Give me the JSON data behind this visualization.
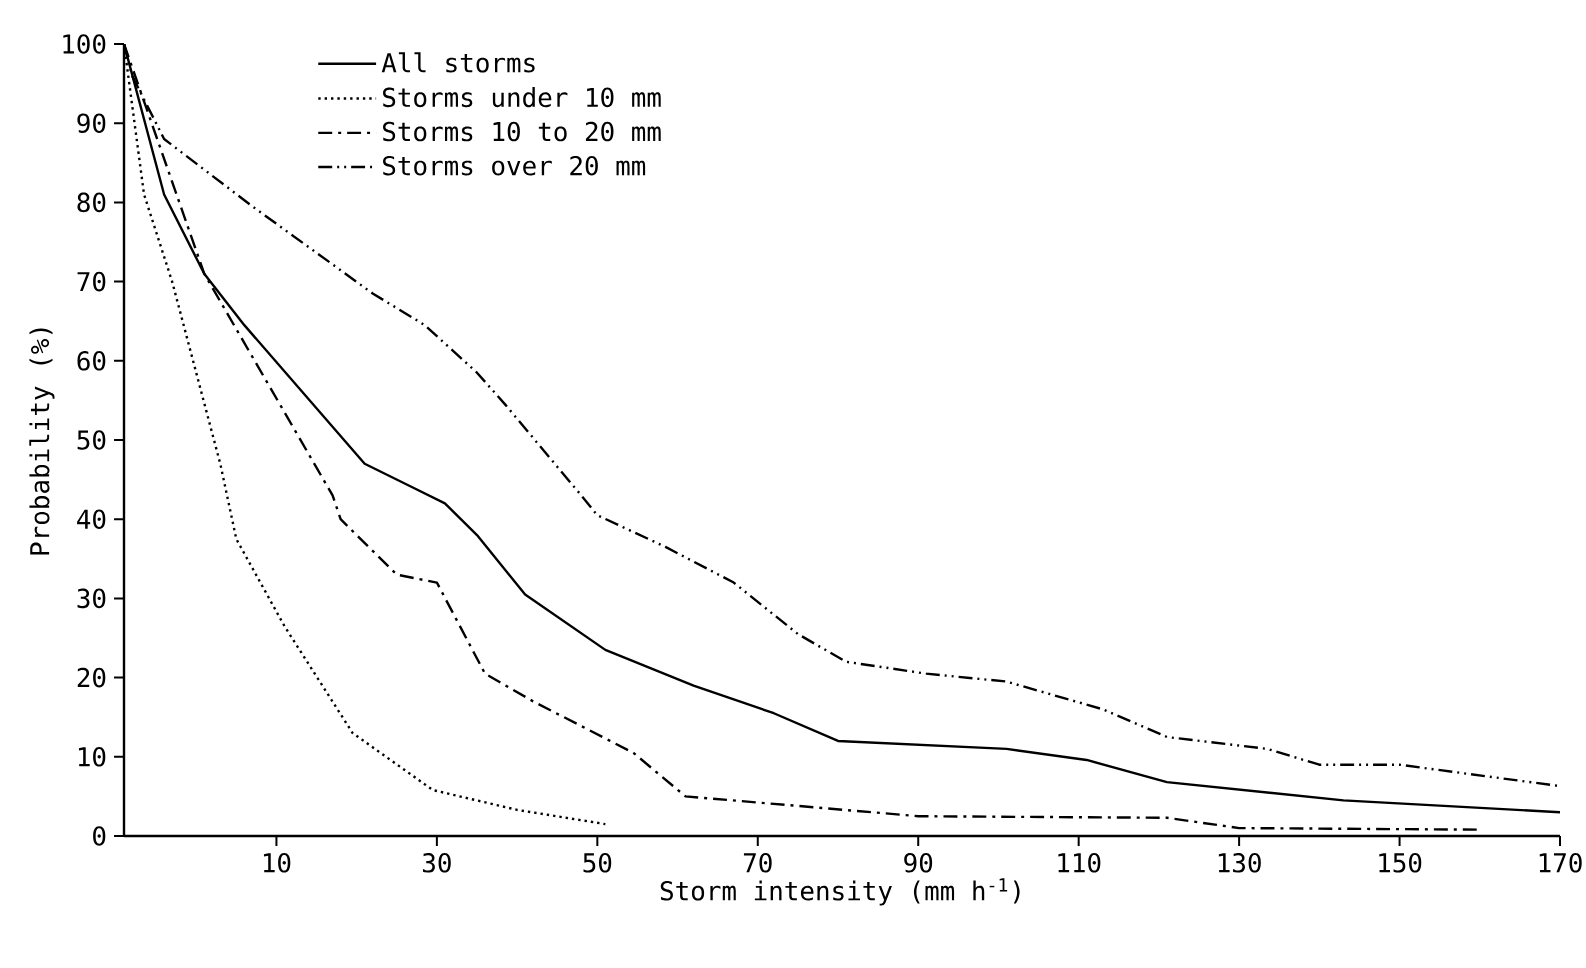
{
  "chart_data": {
    "type": "line",
    "xlabel": "Storm intensity (mm h$^{-1}$)",
    "ylabel": "Probability (%)",
    "xlim": [
      -9,
      170
    ],
    "ylim": [
      0,
      100
    ],
    "xticks": [
      10,
      30,
      50,
      70,
      90,
      110,
      130,
      150,
      170
    ],
    "yticks": [
      0,
      10,
      20,
      30,
      40,
      50,
      60,
      70,
      80,
      90,
      100
    ],
    "grid": false,
    "legend": "top left",
    "marker": "none",
    "series": [
      {
        "name": "All storms",
        "color": "#000000",
        "line_style": "solid",
        "x": [
          -9,
          -4,
          1,
          6,
          21,
          27,
          31,
          35,
          41,
          51,
          62,
          72,
          80,
          101,
          111,
          121,
          143,
          170
        ],
        "values": [
          100,
          81,
          71,
          64.5,
          47,
          44,
          42,
          38,
          30.5,
          23.5,
          19,
          15.5,
          12,
          11,
          9.6,
          6.8,
          4.5,
          3
        ]
      },
      {
        "name": "Storms under 10 mm",
        "color": "#000000",
        "line_style": "dotted",
        "x": [
          -9,
          -6.5,
          -3,
          3,
          5,
          11,
          19.5,
          29.5,
          40,
          51
        ],
        "values": [
          100,
          81,
          70,
          47,
          37.5,
          26.5,
          13,
          5.8,
          3.3,
          1.5
        ]
      },
      {
        "name": "Storms 10 to 20 mm",
        "color": "#000000",
        "line_style": "dashdot",
        "x": [
          -9,
          1,
          17,
          18,
          25,
          30,
          36,
          42,
          54.5,
          61,
          75,
          90,
          121,
          130,
          160
        ],
        "values": [
          100,
          71,
          43,
          40,
          33,
          32,
          20.5,
          17,
          10.5,
          5,
          3.8,
          2.5,
          2.3,
          1,
          0.8
        ]
      },
      {
        "name": "Storms over 20 mm",
        "color": "#000000",
        "line_style": "dashdotdot",
        "x": [
          -9,
          -8,
          -4,
          7,
          22,
          28.5,
          35,
          38.5,
          48,
          50,
          58.5,
          67,
          75,
          81,
          91,
          101,
          113,
          121,
          133.5,
          140,
          150,
          170
        ],
        "values": [
          100,
          96,
          88,
          79.5,
          68.5,
          64.5,
          58.5,
          54.5,
          43,
          40.5,
          36.5,
          32,
          25.5,
          22,
          20.5,
          19.5,
          16,
          12.5,
          11,
          9,
          9,
          6.3
        ]
      }
    ]
  }
}
